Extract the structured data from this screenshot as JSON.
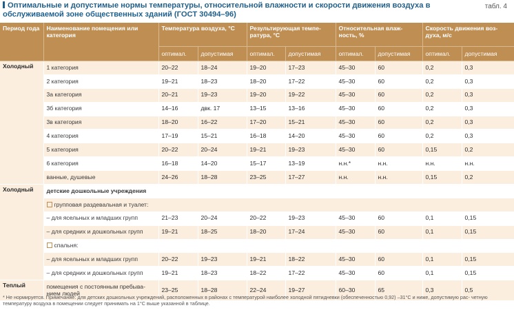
{
  "header": {
    "title": "Оптимальные и допустимые нормы температуры, относительной влажности и скорости движения воздуха в обслуживаемой зоне общественных зданий (ГОСТ 30494–96)",
    "table_label": "табл. 4"
  },
  "columns": {
    "period": "Период года",
    "name": "Наименование помещения или категория",
    "temp": "Температура воздуха, °С",
    "result_temp": "Результирующая темпе- ратура, °С",
    "humidity": "Относительная влаж- ность, %",
    "speed": "Скорость движения воз- духа, м/с",
    "optimal": "оптимал.",
    "allowed": "допустимая"
  },
  "periods": {
    "cold1": "Холодный",
    "cold2": "Холодный",
    "warm": "Теплый"
  },
  "rows": [
    {
      "name": "1 категория",
      "v": [
        "20–22",
        "18–24",
        "19–20",
        "17–23",
        "45–30",
        "60",
        "0,2",
        "0,3"
      ]
    },
    {
      "name": "2 категория",
      "v": [
        "19–21",
        "18–23",
        "18–20",
        "17–22",
        "45–30",
        "60",
        "0,2",
        "0,3"
      ]
    },
    {
      "name": "3а категория",
      "v": [
        "20–21",
        "19–23",
        "19–20",
        "19–22",
        "45–30",
        "60",
        "0,2",
        "0,3"
      ]
    },
    {
      "name": "3б категория",
      "v": [
        "14–16",
        "двк. 17",
        "13–15",
        "13–16",
        "45–30",
        "60",
        "0,2",
        "0,3"
      ]
    },
    {
      "name": "3в категория",
      "v": [
        "18–20",
        "16–22",
        "17–20",
        "15–21",
        "45–30",
        "60",
        "0,2",
        "0,3"
      ]
    },
    {
      "name": "4 категория",
      "v": [
        "17–19",
        "15–21",
        "16–18",
        "14–20",
        "45–30",
        "60",
        "0,2",
        "0,3"
      ]
    },
    {
      "name": "5 категория",
      "v": [
        "20–22",
        "20–24",
        "19–21",
        "19–23",
        "45–30",
        "60",
        "0,15",
        "0,2"
      ]
    },
    {
      "name": "6 категория",
      "v": [
        "16–18",
        "14–20",
        "15–17",
        "13–19",
        "н.н.*",
        "н.н.",
        "н.н.",
        "н.н."
      ]
    },
    {
      "name": "ванные, душевые",
      "v": [
        "24–26",
        "18–28",
        "23–25",
        "17–27",
        "н.н.",
        "н.н.",
        "0,15",
        "0,2"
      ]
    }
  ],
  "kindergarten": {
    "heading": "детские дошкольные учреждения",
    "group1": "групповая раздевальная и туалет:",
    "group2": "спальня:",
    "sub_rows": [
      {
        "name": "–  для ясельных и младших групп",
        "v": [
          "21–23",
          "20–24",
          "20–22",
          "19–23",
          "45–30",
          "60",
          "0,1",
          "0,15"
        ]
      },
      {
        "name": "–  для средних и дошкольных групп",
        "v": [
          "19–21",
          "18–25",
          "18–20",
          "17–24",
          "45–30",
          "60",
          "0,1",
          "0,15"
        ]
      },
      {
        "name": "–  для ясельных и младших групп",
        "v": [
          "20–22",
          "19–23",
          "19–21",
          "18–22",
          "45–30",
          "60",
          "0,1",
          "0,15"
        ]
      },
      {
        "name": "–  для средних и дошкольных групп",
        "v": [
          "19–21",
          "18–23",
          "18–22",
          "17–22",
          "45–30",
          "60",
          "0,1",
          "0,15"
        ]
      }
    ]
  },
  "warm_row": {
    "name": "помещения с постоянным пребыва- нием людей",
    "v": [
      "23–25",
      "18–28",
      "22–24",
      "19–27",
      "60–30",
      "65",
      "0,3",
      "0,5"
    ]
  },
  "footnote": "* Не нормируется. Примечание: для детских дошкольных учреждений, расположенных в районах с температурой наиболее холодной пятидневки (обеспеченностью 0,92) –31°С и ниже, допустимую рас- четную температуру воздуха в помещении следует принимать на 1°С выше указанной в таблице."
}
